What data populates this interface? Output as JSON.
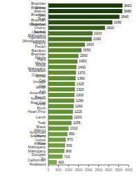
{
  "chart_data": {
    "type": "bar",
    "orientation": "horizontal",
    "categories": [
      "Brazilian Ebony",
      "Brazilian Walnut (Ipe)",
      "Brazilian Teak",
      "Brazilian Redwood",
      "Brazilian Cherry (Jatoba)",
      "Santos Mahogany",
      "Tigerwood (Muiracatiara)",
      "Hickory Pecan",
      "Bamboo",
      "Brazilian Maple",
      "Hard Maple",
      "Royal Mahogany",
      "Australian Cypress",
      "White Oak",
      "Vintage Oak",
      "White Ash",
      "American Beech",
      "Northern Red Oak",
      "Yellow Birch",
      "Heart Pine",
      "Larch",
      "Teak",
      "Black Walnut",
      "American Cherry",
      "Southern Yellow Pine",
      "African Mahogany",
      "Mahogany",
      "Douglas Fir",
      "Californian Redwood"
    ],
    "values": [
      3692,
      3680,
      3540,
      3190,
      2820,
      2200,
      2160,
      1820,
      1650,
      1500,
      1450,
      1400,
      1375,
      1360,
      1325,
      1320,
      1300,
      1290,
      1260,
      1225,
      1200,
      1155,
      1010,
      950,
      870,
      830,
      800,
      710,
      420
    ],
    "colors": [
      "#1a3a08",
      "#1a3a08",
      "#1e3f0b",
      "#294c11",
      "#345917",
      "#467022",
      "#477122",
      "#517e28",
      "#56842b",
      "#5a892e",
      "#5c8b2e",
      "#5d8d2f",
      "#5e8e30",
      "#5e8e30",
      "#5f8f31",
      "#609031",
      "#609031",
      "#609131",
      "#619232",
      "#629332",
      "#639433",
      "#649533",
      "#699b36",
      "#6a9d37",
      "#6da038",
      "#6ea139",
      "#6fa239",
      "#71a63b",
      "#7ab040"
    ],
    "xlim": [
      0,
      4000
    ],
    "xticks": [
      0,
      500,
      1000,
      1500,
      2000,
      2500,
      3000,
      3500,
      4000
    ],
    "data_labels": true,
    "grid": false
  }
}
